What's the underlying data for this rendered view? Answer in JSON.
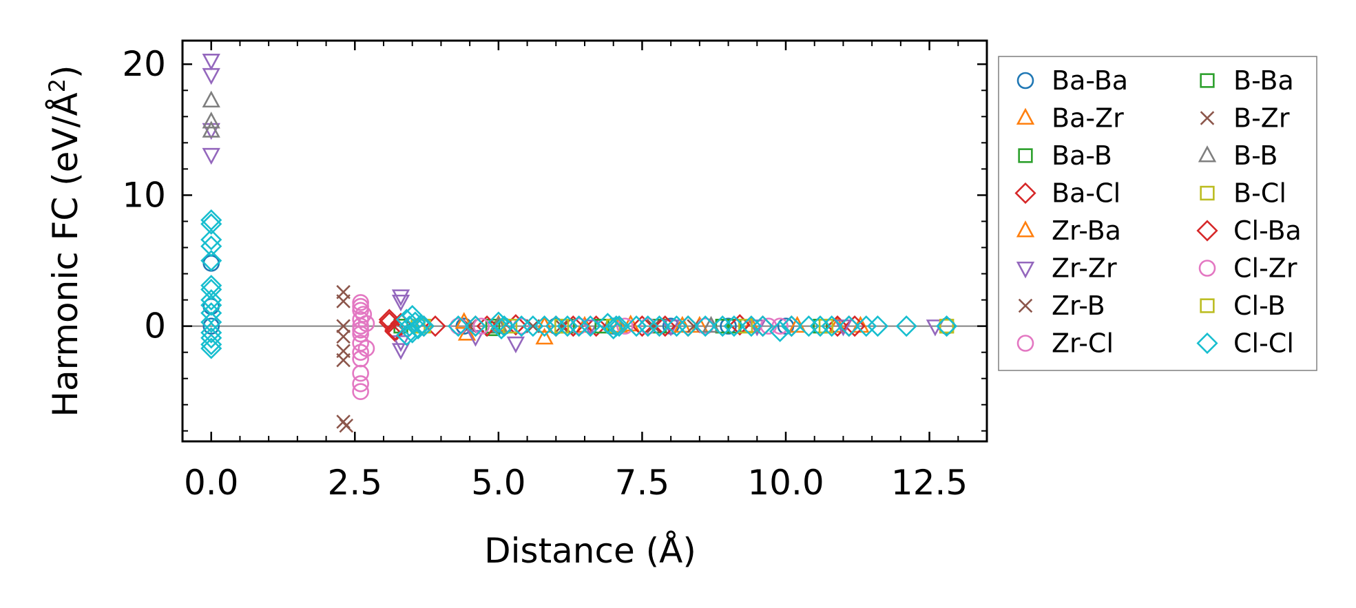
{
  "chart_data": {
    "type": "scatter",
    "title": "",
    "xlabel": "Distance (Å)",
    "ylabel_main": "Harmonic FC (eV/Å",
    "ylabel_sup": "2",
    "ylabel_close": ")",
    "xlim": [
      -0.5,
      13.5
    ],
    "ylim": [
      -8.8,
      21.8
    ],
    "xticks": [
      0.0,
      2.5,
      5.0,
      7.5,
      10.0,
      12.5
    ],
    "xtick_labels": [
      "0.0",
      "2.5",
      "5.0",
      "7.5",
      "10.0",
      "12.5"
    ],
    "yticks": [
      0,
      10,
      20
    ],
    "ytick_labels": [
      "0",
      "10",
      "20"
    ],
    "zero_line": true,
    "legend_position": "outside-right",
    "series": [
      {
        "name": "Ba-Ba",
        "marker": "circle",
        "color": "#1f77b4",
        "points": [
          [
            0,
            4.8
          ],
          [
            0,
            1.5
          ],
          [
            0,
            0
          ],
          [
            4.4,
            0
          ],
          [
            5.1,
            0
          ],
          [
            6.0,
            0
          ],
          [
            7.0,
            0
          ],
          [
            8.0,
            0
          ],
          [
            9.0,
            0
          ],
          [
            10.0,
            0
          ],
          [
            12.8,
            0
          ]
        ]
      },
      {
        "name": "Ba-Zr",
        "marker": "triangle-up",
        "color": "#ff7f0e",
        "points": [
          [
            4.45,
            -0.6
          ],
          [
            5.0,
            0.1
          ],
          [
            5.8,
            -0.9
          ],
          [
            6.5,
            0
          ],
          [
            7.3,
            0.1
          ],
          [
            8.2,
            0
          ],
          [
            9.4,
            0
          ],
          [
            10.9,
            0
          ],
          [
            11.3,
            0
          ]
        ]
      },
      {
        "name": "Ba-B",
        "marker": "square",
        "color": "#2ca02c",
        "points": [
          [
            3.3,
            0
          ],
          [
            4.9,
            -0.2
          ],
          [
            6.2,
            0
          ],
          [
            7.8,
            0
          ],
          [
            9.1,
            0
          ],
          [
            10.6,
            0
          ]
        ]
      },
      {
        "name": "Ba-Cl",
        "marker": "diamond",
        "color": "#d62728",
        "points": [
          [
            3.1,
            0.3
          ],
          [
            3.2,
            -0.4
          ],
          [
            3.3,
            0.2
          ],
          [
            3.9,
            0
          ],
          [
            4.6,
            0
          ],
          [
            5.3,
            0.1
          ],
          [
            6.0,
            0
          ],
          [
            6.7,
            0
          ],
          [
            7.5,
            0
          ],
          [
            8.3,
            0
          ],
          [
            9.2,
            0.1
          ],
          [
            10.1,
            0
          ],
          [
            10.9,
            0
          ],
          [
            11.2,
            0
          ]
        ]
      },
      {
        "name": "Zr-Ba",
        "marker": "triangle-up",
        "color": "#ff7f0e",
        "points": [
          [
            4.4,
            0.3
          ],
          [
            5.8,
            0
          ],
          [
            7.1,
            0
          ],
          [
            8.5,
            0
          ],
          [
            10.2,
            0
          ]
        ]
      },
      {
        "name": "Zr-Zr",
        "marker": "triangle-down",
        "color": "#9467bd",
        "points": [
          [
            0,
            20.3
          ],
          [
            0,
            19.2
          ],
          [
            0,
            15.0
          ],
          [
            0,
            13.1
          ],
          [
            3.3,
            2.3
          ],
          [
            3.3,
            1.9
          ],
          [
            3.3,
            -1.8
          ],
          [
            3.3,
            -1.2
          ],
          [
            4.6,
            -0.8
          ],
          [
            5.3,
            -1.3
          ],
          [
            6.6,
            0
          ],
          [
            8.0,
            0
          ],
          [
            9.5,
            0
          ],
          [
            11.0,
            0
          ],
          [
            12.6,
            0
          ]
        ]
      },
      {
        "name": "Zr-B",
        "marker": "x",
        "color": "#8c564b",
        "points": [
          [
            2.3,
            2.6
          ],
          [
            2.3,
            0
          ],
          [
            2.3,
            -0.8
          ],
          [
            2.3,
            -2.6
          ],
          [
            2.3,
            -7.3
          ],
          [
            2.35,
            -7.6
          ],
          [
            4.5,
            0
          ],
          [
            6.1,
            0
          ],
          [
            8.4,
            0
          ]
        ]
      },
      {
        "name": "Zr-Cl",
        "marker": "circle",
        "color": "#e377c2",
        "points": [
          [
            2.6,
            1.8
          ],
          [
            2.6,
            1.2
          ],
          [
            2.6,
            0.5
          ],
          [
            2.6,
            0
          ],
          [
            2.6,
            -0.6
          ],
          [
            2.6,
            -1.3
          ],
          [
            2.6,
            -2.0
          ],
          [
            2.6,
            -3.6
          ],
          [
            2.6,
            -4.4
          ],
          [
            2.6,
            -5.0
          ],
          [
            2.65,
            0.9
          ],
          [
            2.7,
            -1.7
          ],
          [
            2.7,
            0.2
          ],
          [
            4.3,
            0
          ],
          [
            5.4,
            0
          ],
          [
            6.4,
            0
          ],
          [
            7.6,
            0
          ],
          [
            8.6,
            0
          ],
          [
            9.7,
            0
          ]
        ]
      },
      {
        "name": "B-Ba",
        "marker": "square",
        "color": "#2ca02c",
        "points": [
          [
            4.9,
            0
          ],
          [
            6.8,
            0
          ],
          [
            8.9,
            0
          ]
        ]
      },
      {
        "name": "B-Zr",
        "marker": "x",
        "color": "#8c564b",
        "points": [
          [
            2.3,
            1.9
          ],
          [
            2.3,
            -1.9
          ],
          [
            5.6,
            0
          ],
          [
            7.7,
            0
          ]
        ]
      },
      {
        "name": "B-B",
        "marker": "triangle-up",
        "color": "#7f7f7f",
        "points": [
          [
            0,
            17.2
          ],
          [
            0,
            15.6
          ],
          [
            0,
            14.9
          ],
          [
            5.0,
            0
          ],
          [
            8.7,
            0
          ]
        ]
      },
      {
        "name": "B-Cl",
        "marker": "square",
        "color": "#bcbd22",
        "points": [
          [
            3.6,
            0
          ],
          [
            5.2,
            0
          ],
          [
            7.0,
            0
          ],
          [
            10.7,
            0
          ],
          [
            12.8,
            0
          ]
        ]
      },
      {
        "name": "Cl-Ba",
        "marker": "diamond",
        "color": "#d62728",
        "points": [
          [
            3.1,
            0.5
          ],
          [
            3.2,
            -0.3
          ],
          [
            3.7,
            0
          ],
          [
            4.8,
            0
          ],
          [
            6.3,
            0
          ],
          [
            7.9,
            0
          ],
          [
            9.6,
            0
          ],
          [
            11.1,
            0
          ]
        ]
      },
      {
        "name": "Cl-Zr",
        "marker": "circle",
        "color": "#e377c2",
        "points": [
          [
            2.6,
            1.5
          ],
          [
            2.6,
            -2.5
          ],
          [
            2.6,
            -0.3
          ],
          [
            4.7,
            0
          ],
          [
            7.2,
            0
          ],
          [
            9.9,
            0
          ]
        ]
      },
      {
        "name": "Cl-B",
        "marker": "square",
        "color": "#bcbd22",
        "points": [
          [
            3.7,
            0
          ],
          [
            6.1,
            0
          ],
          [
            9.3,
            0
          ],
          [
            12.8,
            0
          ]
        ]
      },
      {
        "name": "Cl-Cl",
        "marker": "diamond",
        "color": "#17becf",
        "points": [
          [
            0,
            8.1
          ],
          [
            0,
            7.8
          ],
          [
            0,
            6.6
          ],
          [
            0,
            6.1
          ],
          [
            0,
            5.0
          ],
          [
            0,
            3.1
          ],
          [
            0,
            2.8
          ],
          [
            0,
            2.0
          ],
          [
            0,
            1.6
          ],
          [
            0,
            1.0
          ],
          [
            0,
            0.3
          ],
          [
            0,
            -0.5
          ],
          [
            0,
            -0.9
          ],
          [
            0,
            -1.4
          ],
          [
            0,
            -1.7
          ],
          [
            3.4,
            0.5
          ],
          [
            3.45,
            0
          ],
          [
            3.5,
            -0.5
          ],
          [
            3.55,
            0.3
          ],
          [
            3.6,
            -0.2
          ],
          [
            3.65,
            0.1
          ],
          [
            3.7,
            0
          ],
          [
            3.5,
            0.8
          ],
          [
            3.4,
            -0.7
          ],
          [
            4.3,
            0
          ],
          [
            4.6,
            0
          ],
          [
            5.0,
            0.3
          ],
          [
            5.05,
            -0.2
          ],
          [
            5.1,
            0
          ],
          [
            5.4,
            0
          ],
          [
            5.6,
            0
          ],
          [
            5.8,
            0
          ],
          [
            6.0,
            0
          ],
          [
            6.2,
            0
          ],
          [
            6.4,
            0
          ],
          [
            6.6,
            0
          ],
          [
            6.9,
            0.2
          ],
          [
            7.0,
            -0.2
          ],
          [
            7.05,
            0
          ],
          [
            7.1,
            0
          ],
          [
            7.4,
            0
          ],
          [
            7.6,
            0
          ],
          [
            7.8,
            0
          ],
          [
            8.1,
            0
          ],
          [
            8.3,
            0
          ],
          [
            8.6,
            0
          ],
          [
            8.9,
            0
          ],
          [
            9.1,
            0
          ],
          [
            9.4,
            0
          ],
          [
            9.6,
            0
          ],
          [
            9.9,
            -0.4
          ],
          [
            10.1,
            0
          ],
          [
            10.4,
            0
          ],
          [
            10.6,
            0
          ],
          [
            10.8,
            0
          ],
          [
            11.1,
            0
          ],
          [
            11.4,
            0
          ],
          [
            11.6,
            0
          ],
          [
            12.1,
            0
          ],
          [
            12.8,
            0
          ]
        ]
      }
    ]
  }
}
